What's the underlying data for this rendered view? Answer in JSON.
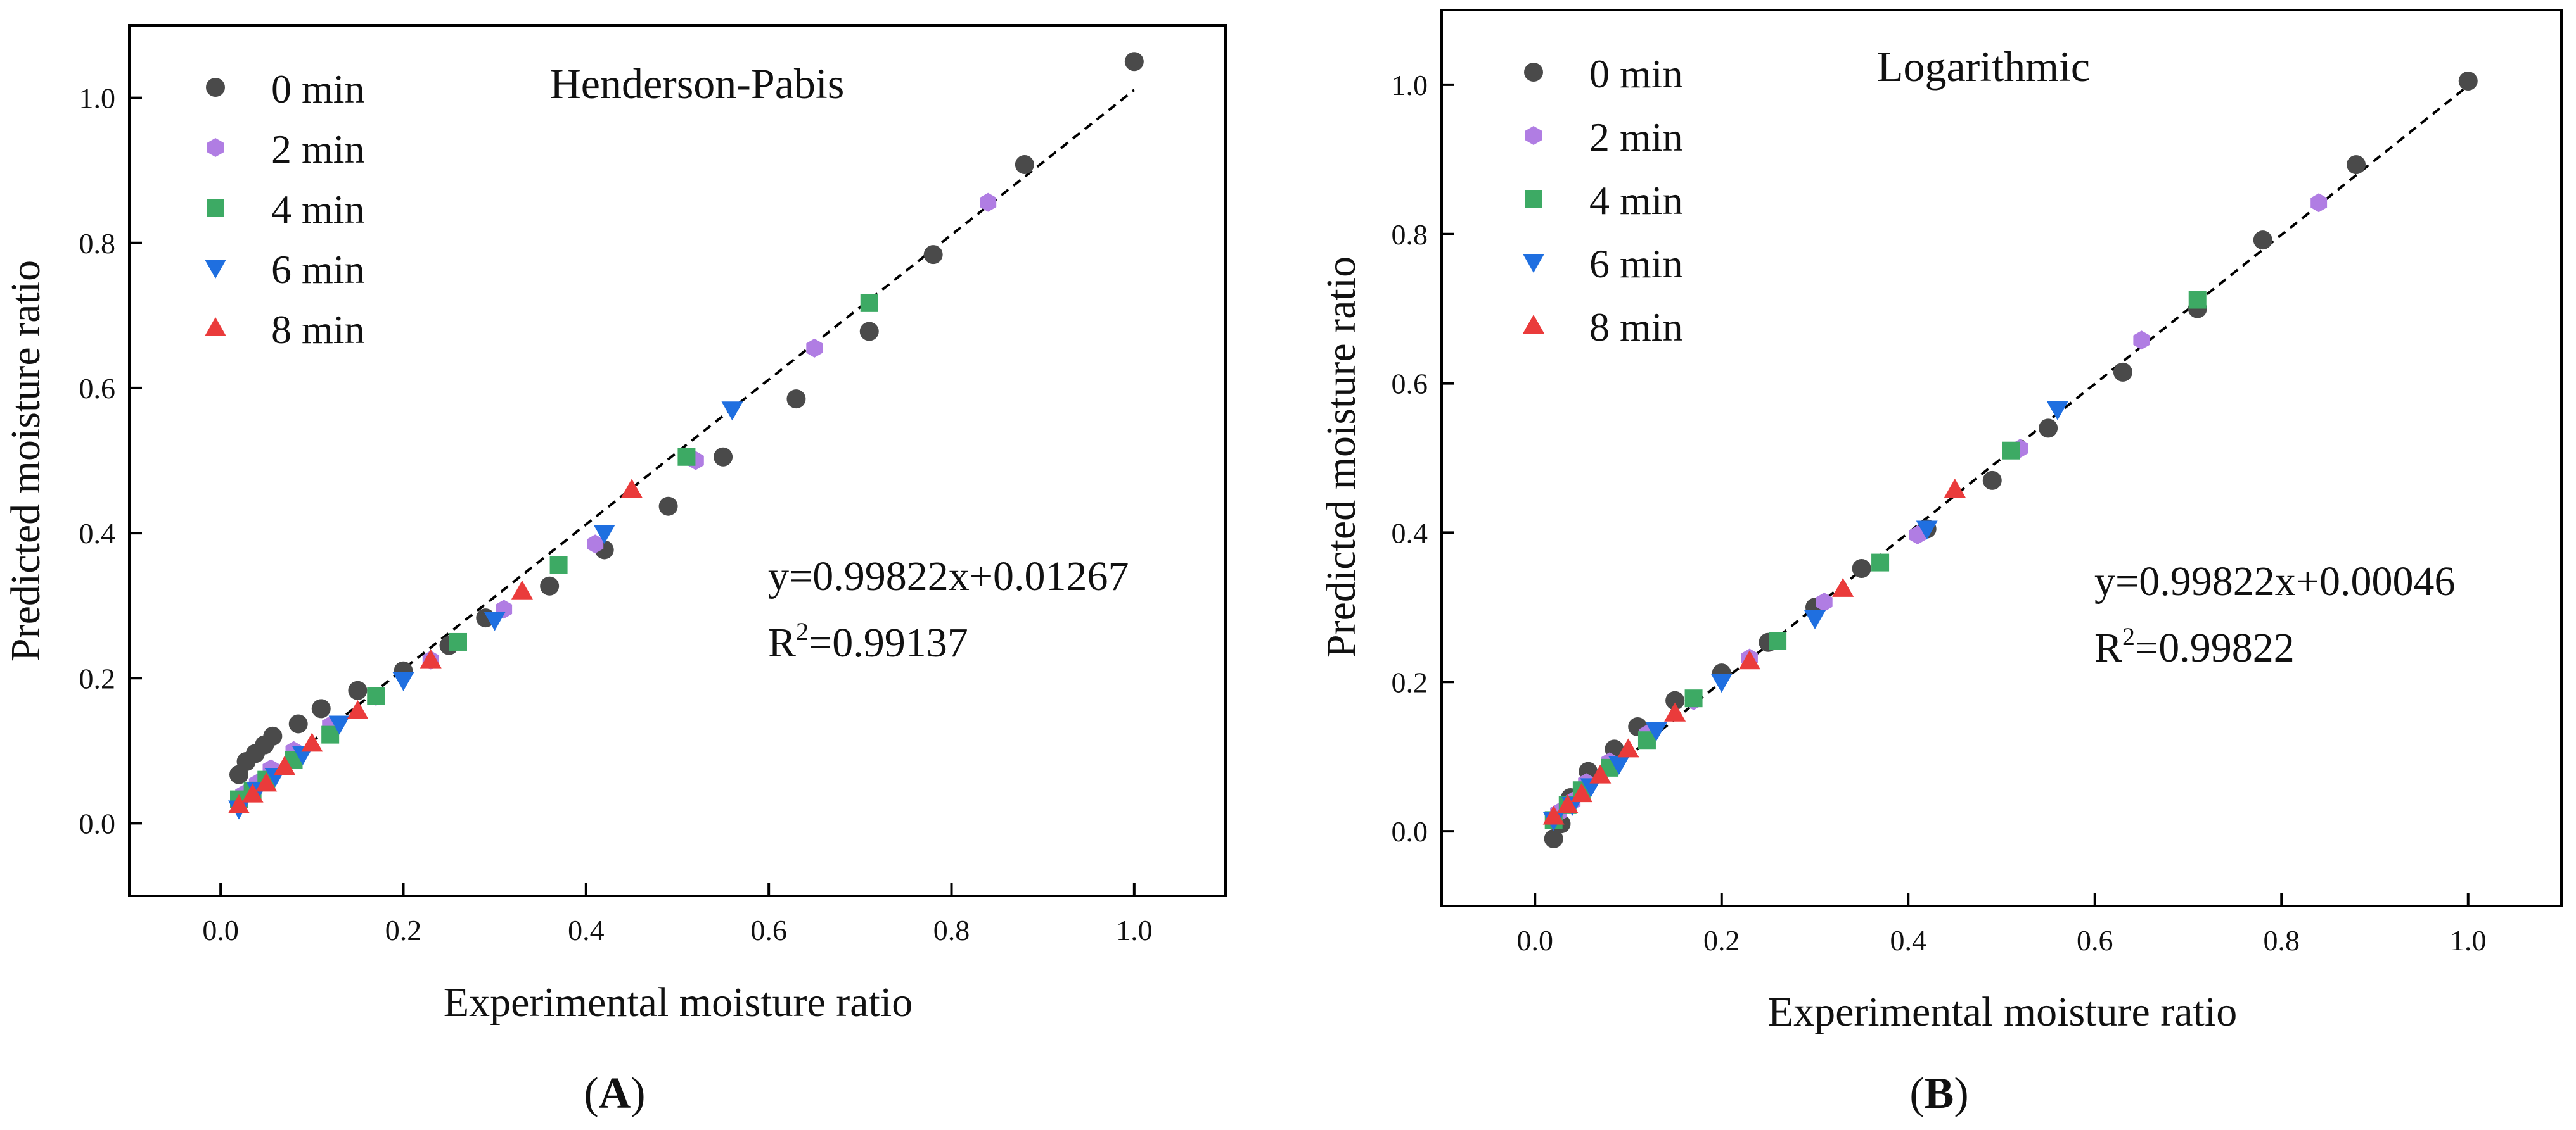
{
  "colors": {
    "0 min": "#4a4a4a",
    "2 min": "#b07de3",
    "4 min": "#3daa64",
    "6 min": "#1f6fe0",
    "8 min": "#ea3b3b"
  },
  "chart_data": [
    {
      "type": "scatter",
      "panel": "A",
      "panel_open": "(",
      "panel_close": ")",
      "title": "Henderson-Pabis",
      "xlabel": "Experimental moisture ratio",
      "ylabel": "Predicted moisture ratio",
      "xlim": [
        -0.1,
        1.1
      ],
      "ylim": [
        -0.1,
        1.1
      ],
      "xticks": [
        "0.0",
        "0.2",
        "0.4",
        "0.6",
        "0.8",
        "1.0"
      ],
      "yticks": [
        "0.0",
        "0.2",
        "0.4",
        "0.6",
        "0.8",
        "1.0"
      ],
      "fit": {
        "slope": 0.99822,
        "intercept": 0.01267,
        "x_range": [
          0.02,
          1.0
        ]
      },
      "equation": "y=0.99822x+0.01267",
      "r2_prefix": "R",
      "r2_sup": "2",
      "r2_value": "=0.99137",
      "legend_position": "top-left",
      "series": [
        {
          "name": "0 min",
          "marker": "circle",
          "x": [
            1.0,
            0.88,
            0.78,
            0.71,
            0.63,
            0.55,
            0.49,
            0.42,
            0.36,
            0.29,
            0.25,
            0.2,
            0.15,
            0.11,
            0.085,
            0.057,
            0.048,
            0.038,
            0.028,
            0.02
          ],
          "y": [
            1.05,
            0.908,
            0.784,
            0.678,
            0.585,
            0.505,
            0.437,
            0.377,
            0.327,
            0.283,
            0.245,
            0.21,
            0.183,
            0.158,
            0.137,
            0.12,
            0.108,
            0.096,
            0.085,
            0.067
          ]
        },
        {
          "name": "2 min",
          "marker": "hexagon",
          "x": [
            0.84,
            0.65,
            0.52,
            0.41,
            0.31,
            0.23,
            0.17,
            0.12,
            0.08,
            0.055,
            0.04,
            0.025
          ],
          "y": [
            0.856,
            0.655,
            0.5,
            0.385,
            0.295,
            0.225,
            0.175,
            0.135,
            0.1,
            0.075,
            0.055,
            0.04
          ]
        },
        {
          "name": "4 min",
          "marker": "square",
          "x": [
            0.71,
            0.51,
            0.37,
            0.26,
            0.17,
            0.12,
            0.08,
            0.05,
            0.035,
            0.02
          ],
          "y": [
            0.717,
            0.505,
            0.356,
            0.25,
            0.175,
            0.122,
            0.087,
            0.06,
            0.045,
            0.033
          ]
        },
        {
          "name": "6 min",
          "marker": "triangle-down",
          "x": [
            0.56,
            0.42,
            0.3,
            0.2,
            0.13,
            0.09,
            0.06,
            0.04,
            0.02
          ],
          "y": [
            0.57,
            0.4,
            0.28,
            0.197,
            0.137,
            0.095,
            0.065,
            0.045,
            0.02
          ]
        },
        {
          "name": "8 min",
          "marker": "triangle-up",
          "x": [
            0.45,
            0.33,
            0.23,
            0.15,
            0.1,
            0.07,
            0.05,
            0.035,
            0.02
          ],
          "y": [
            0.46,
            0.32,
            0.225,
            0.155,
            0.11,
            0.078,
            0.055,
            0.04,
            0.025
          ]
        }
      ]
    },
    {
      "type": "scatter",
      "panel": "B",
      "panel_open": "(",
      "panel_close": ")",
      "title": "Logarithmic",
      "xlabel": "Experimental moisture ratio",
      "ylabel": "Predicted moisture ratio",
      "xlim": [
        -0.1,
        1.1
      ],
      "ylim": [
        -0.1,
        1.1
      ],
      "xticks": [
        "0.0",
        "0.2",
        "0.4",
        "0.6",
        "0.8",
        "1.0"
      ],
      "yticks": [
        "0.0",
        "0.2",
        "0.4",
        "0.6",
        "0.8",
        "1.0"
      ],
      "fit": {
        "slope": 0.99822,
        "intercept": 0.00046,
        "x_range": [
          0.02,
          1.0
        ]
      },
      "equation": "y=0.99822x+0.00046",
      "r2_prefix": "R",
      "r2_sup": "2",
      "r2_value": "=0.99822",
      "legend_position": "top-left",
      "series": [
        {
          "name": "0 min",
          "marker": "circle",
          "x": [
            1.0,
            0.88,
            0.78,
            0.71,
            0.63,
            0.55,
            0.49,
            0.42,
            0.35,
            0.3,
            0.25,
            0.2,
            0.15,
            0.11,
            0.085,
            0.057,
            0.038,
            0.028,
            0.02
          ],
          "y": [
            1.005,
            0.893,
            0.792,
            0.7,
            0.615,
            0.54,
            0.47,
            0.405,
            0.352,
            0.3,
            0.253,
            0.212,
            0.175,
            0.14,
            0.11,
            0.08,
            0.045,
            0.01,
            -0.01
          ]
        },
        {
          "name": "2 min",
          "marker": "hexagon",
          "x": [
            0.84,
            0.65,
            0.52,
            0.41,
            0.31,
            0.23,
            0.17,
            0.12,
            0.08,
            0.055,
            0.04,
            0.025
          ],
          "y": [
            0.842,
            0.658,
            0.513,
            0.397,
            0.307,
            0.232,
            0.175,
            0.13,
            0.093,
            0.065,
            0.04,
            0.025
          ]
        },
        {
          "name": "4 min",
          "marker": "square",
          "x": [
            0.71,
            0.51,
            0.37,
            0.26,
            0.17,
            0.12,
            0.08,
            0.05,
            0.035,
            0.02
          ],
          "y": [
            0.712,
            0.51,
            0.36,
            0.255,
            0.178,
            0.122,
            0.085,
            0.055,
            0.035,
            0.015
          ]
        },
        {
          "name": "6 min",
          "marker": "triangle-down",
          "x": [
            0.56,
            0.42,
            0.3,
            0.2,
            0.13,
            0.09,
            0.06,
            0.04,
            0.02
          ],
          "y": [
            0.565,
            0.405,
            0.285,
            0.2,
            0.135,
            0.09,
            0.06,
            0.035,
            0.015
          ]
        },
        {
          "name": "8 min",
          "marker": "triangle-up",
          "x": [
            0.45,
            0.33,
            0.23,
            0.15,
            0.1,
            0.07,
            0.05,
            0.035,
            0.02
          ],
          "y": [
            0.458,
            0.325,
            0.228,
            0.158,
            0.11,
            0.075,
            0.05,
            0.035,
            0.02
          ]
        }
      ]
    }
  ]
}
